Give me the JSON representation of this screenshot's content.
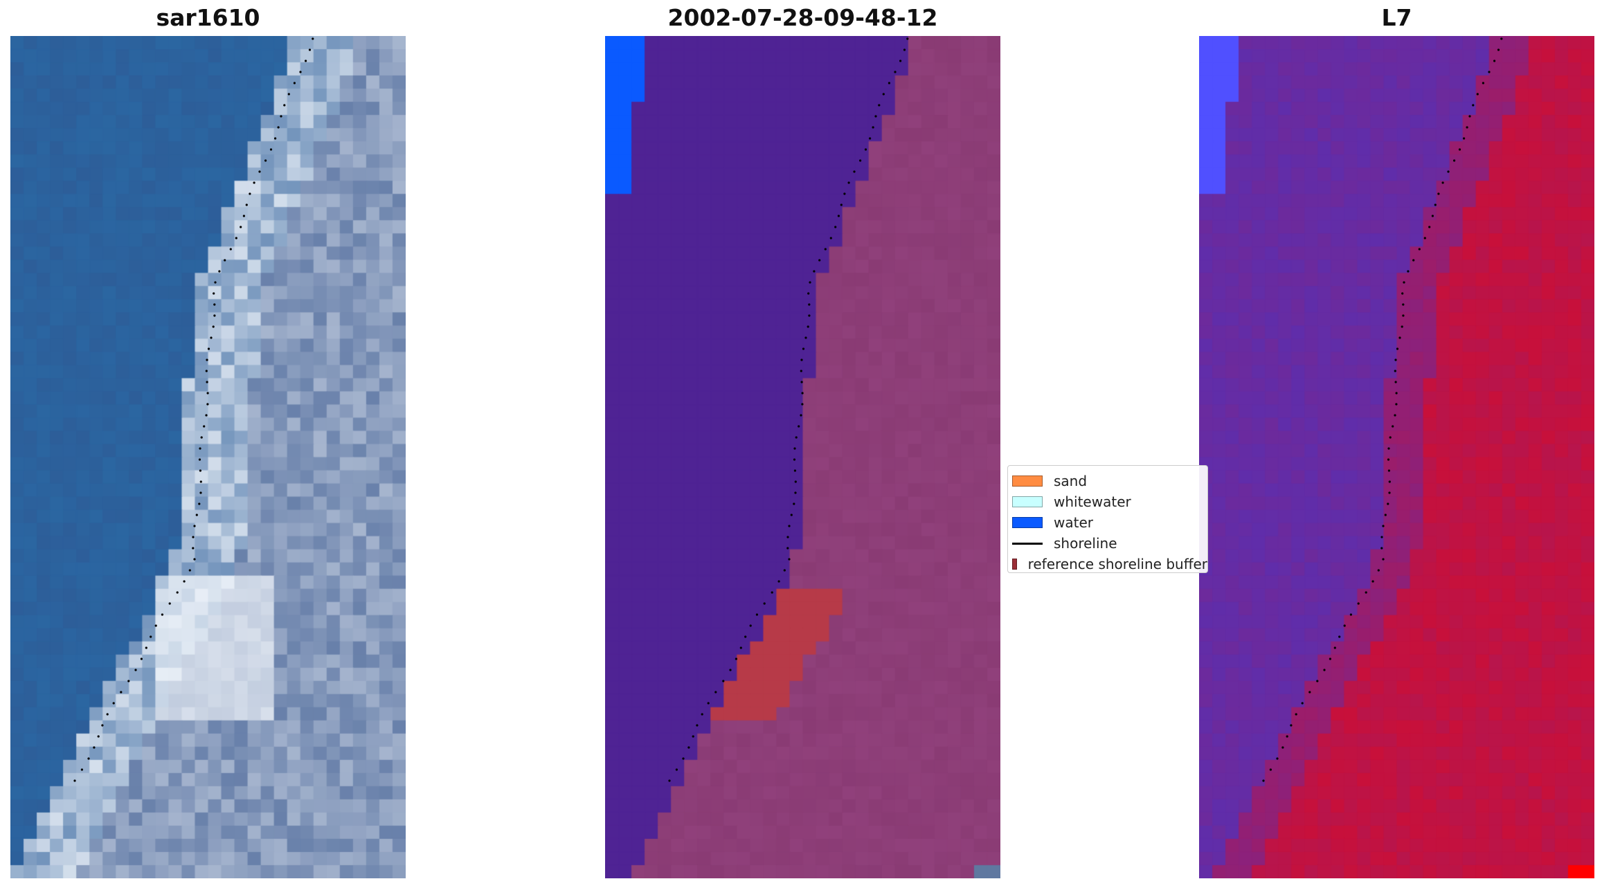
{
  "panels": [
    {
      "title": "sar1610",
      "icon": "satellite-rgb-image"
    },
    {
      "title": "2002-07-28-09-48-12",
      "icon": "classified-image"
    },
    {
      "title": "L7",
      "icon": "mndwi-image"
    }
  ],
  "legend": {
    "items": [
      {
        "label": "sand",
        "color": "#ff8c42",
        "kind": "patch"
      },
      {
        "label": "whitewater",
        "color": "#c8ffff",
        "kind": "patch"
      },
      {
        "label": "water",
        "color": "#0a5aff",
        "kind": "patch"
      },
      {
        "label": "shoreline",
        "color": "#000000",
        "kind": "line"
      },
      {
        "label": "reference shoreline buffer",
        "color": "#9b2f37",
        "kind": "patch"
      }
    ]
  },
  "colors": {
    "water_class": "#0a5aff",
    "sea_class": "#4f2394",
    "land_class": "#8a3b74",
    "sand_class": "#b73a48",
    "index_low": "#5a2fb0",
    "index_high": "#c8103a",
    "rgb_water": "#2d5e99",
    "rgb_surf": "#f2f6fb"
  }
}
